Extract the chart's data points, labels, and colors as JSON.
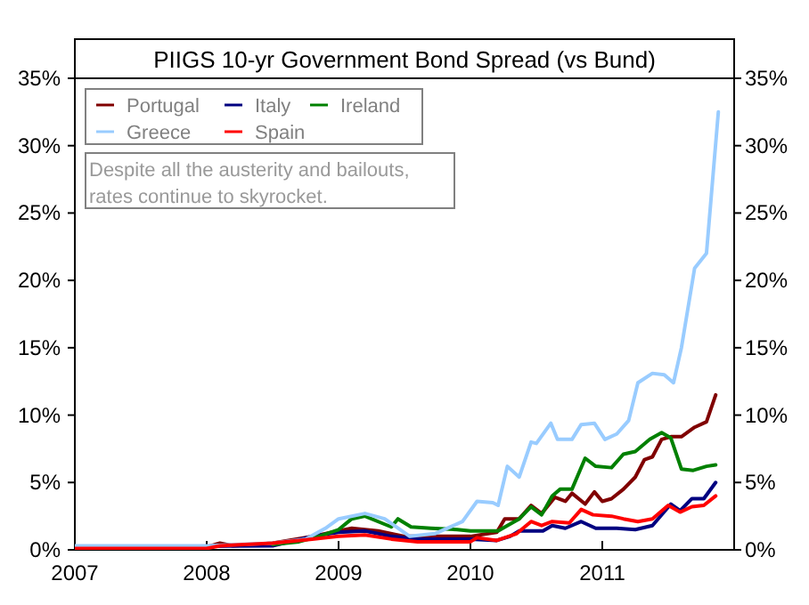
{
  "chart_data": {
    "type": "line",
    "title": "PIIGS 10-yr Government Bond Spread (vs Bund)",
    "annotations": [
      "Despite all the austerity and bailouts, rates continue to skyrocket."
    ],
    "xlim": [
      2007,
      2012
    ],
    "xticks": [
      {
        "value": 2007,
        "label": "2007"
      },
      {
        "value": 2008,
        "label": "2008"
      },
      {
        "value": 2009,
        "label": "2009"
      },
      {
        "value": 2010,
        "label": "2010"
      },
      {
        "value": 2011,
        "label": "2011"
      }
    ],
    "ylim": [
      0,
      35
    ],
    "yticks": [
      {
        "value": 0,
        "label": "0%"
      },
      {
        "value": 5,
        "label": "5%"
      },
      {
        "value": 10,
        "label": "10%"
      },
      {
        "value": 15,
        "label": "15%"
      },
      {
        "value": 20,
        "label": "20%"
      },
      {
        "value": 25,
        "label": "25%"
      },
      {
        "value": 30,
        "label": "30%"
      },
      {
        "value": 35,
        "label": "35%"
      }
    ],
    "y2lim": [
      0,
      35
    ],
    "y2ticks": [
      {
        "value": 0,
        "label": "0%"
      },
      {
        "value": 5,
        "label": "5%"
      },
      {
        "value": 10,
        "label": "10%"
      },
      {
        "value": 15,
        "label": "15%"
      },
      {
        "value": 20,
        "label": "20%"
      },
      {
        "value": 25,
        "label": "25%"
      },
      {
        "value": 30,
        "label": "30%"
      },
      {
        "value": 35,
        "label": "35%"
      }
    ],
    "grid": false,
    "legend": "top left",
    "series": [
      {
        "name": "Portugal",
        "color": "#800000",
        "x": [
          2007,
          2008,
          2008.1,
          2008.2,
          2008.5,
          2008.8,
          2009.0,
          2009.1,
          2009.3,
          2009.5,
          2010.0,
          2010.2,
          2010.26,
          2010.37,
          2010.46,
          2010.54,
          2010.64,
          2010.72,
          2010.77,
          2010.87,
          2010.94,
          2011.0,
          2011.07,
          2011.16,
          2011.25,
          2011.32,
          2011.38,
          2011.45,
          2011.52,
          2011.6,
          2011.7,
          2011.79,
          2011.86
        ],
        "values": [
          0.2,
          0.2,
          0.5,
          0.3,
          0.5,
          1.0,
          1.4,
          1.6,
          1.4,
          1.0,
          1.0,
          1.3,
          2.3,
          2.3,
          3.3,
          2.7,
          3.9,
          3.6,
          4.2,
          3.4,
          4.3,
          3.6,
          3.8,
          4.5,
          5.4,
          6.7,
          6.9,
          8.2,
          8.4,
          8.4,
          9.1,
          9.5,
          11.5
        ]
      },
      {
        "name": "Italy",
        "color": "#000080",
        "x": [
          2007,
          2008.5,
          2008.8,
          2009.0,
          2009.2,
          2009.4,
          2009.6,
          2010.0,
          2010.2,
          2010.3,
          2010.37,
          2010.55,
          2010.62,
          2010.72,
          2010.84,
          2010.95,
          2011.11,
          2011.25,
          2011.38,
          2011.52,
          2011.59,
          2011.68,
          2011.77,
          2011.86
        ],
        "values": [
          0.2,
          0.3,
          1.0,
          1.3,
          1.4,
          1.0,
          0.8,
          0.8,
          0.7,
          1.0,
          1.4,
          1.4,
          1.8,
          1.6,
          2.1,
          1.6,
          1.6,
          1.5,
          1.8,
          3.4,
          2.9,
          3.8,
          3.8,
          5.0
        ]
      },
      {
        "name": "Ireland",
        "color": "#008000",
        "x": [
          2008.5,
          2008.7,
          2008.85,
          2009.0,
          2009.1,
          2009.2,
          2009.35,
          2009.4,
          2009.45,
          2009.55,
          2009.7,
          2009.9,
          2010.0,
          2010.21,
          2010.28,
          2010.37,
          2010.46,
          2010.54,
          2010.62,
          2010.68,
          2010.77,
          2010.87,
          2010.95,
          2011.07,
          2011.16,
          2011.25,
          2011.36,
          2011.45,
          2011.52,
          2011.6,
          2011.69,
          2011.79,
          2011.86
        ],
        "values": [
          0.4,
          0.6,
          1.0,
          1.5,
          2.3,
          2.5,
          1.9,
          1.7,
          2.3,
          1.7,
          1.6,
          1.5,
          1.4,
          1.4,
          1.8,
          2.3,
          3.2,
          2.6,
          4.0,
          4.5,
          4.5,
          6.8,
          6.2,
          6.1,
          7.1,
          7.3,
          8.2,
          8.7,
          8.3,
          6.0,
          5.9,
          6.2,
          6.3
        ]
      },
      {
        "name": "Greece",
        "color": "#99ccff",
        "x": [
          2007,
          2008.0,
          2008.5,
          2008.75,
          2008.9,
          2009.0,
          2009.2,
          2009.35,
          2009.54,
          2009.73,
          2009.94,
          2010.05,
          2010.17,
          2010.21,
          2010.28,
          2010.37,
          2010.46,
          2010.5,
          2010.61,
          2010.66,
          2010.77,
          2010.84,
          2010.94,
          2011.02,
          2011.11,
          2011.2,
          2011.27,
          2011.38,
          2011.47,
          2011.54,
          2011.6,
          2011.7,
          2011.79,
          2011.88
        ],
        "values": [
          0.3,
          0.3,
          0.5,
          0.8,
          1.6,
          2.3,
          2.7,
          2.3,
          1.0,
          1.2,
          2.1,
          3.6,
          3.5,
          3.3,
          6.2,
          5.4,
          8.0,
          7.9,
          9.4,
          8.2,
          8.2,
          9.3,
          9.4,
          8.2,
          8.6,
          9.6,
          12.4,
          13.1,
          13.0,
          12.4,
          15.0,
          20.9,
          22.0,
          32.5
        ]
      },
      {
        "name": "Spain",
        "color": "#ff0000",
        "x": [
          2007,
          2008.0,
          2008.1,
          2008.5,
          2008.8,
          2009.0,
          2009.2,
          2009.4,
          2009.6,
          2010.0,
          2010.05,
          2010.2,
          2010.35,
          2010.46,
          2010.54,
          2010.62,
          2010.75,
          2010.84,
          2010.93,
          2011.07,
          2011.16,
          2011.27,
          2011.38,
          2011.5,
          2011.59,
          2011.68,
          2011.77,
          2011.86
        ],
        "values": [
          0.1,
          0.1,
          0.3,
          0.5,
          0.8,
          1.0,
          1.1,
          0.8,
          0.6,
          0.6,
          0.9,
          0.7,
          1.2,
          2.1,
          1.8,
          2.1,
          2.0,
          3.0,
          2.6,
          2.5,
          2.3,
          2.1,
          2.3,
          3.3,
          2.8,
          3.2,
          3.3,
          4.0
        ]
      }
    ]
  }
}
